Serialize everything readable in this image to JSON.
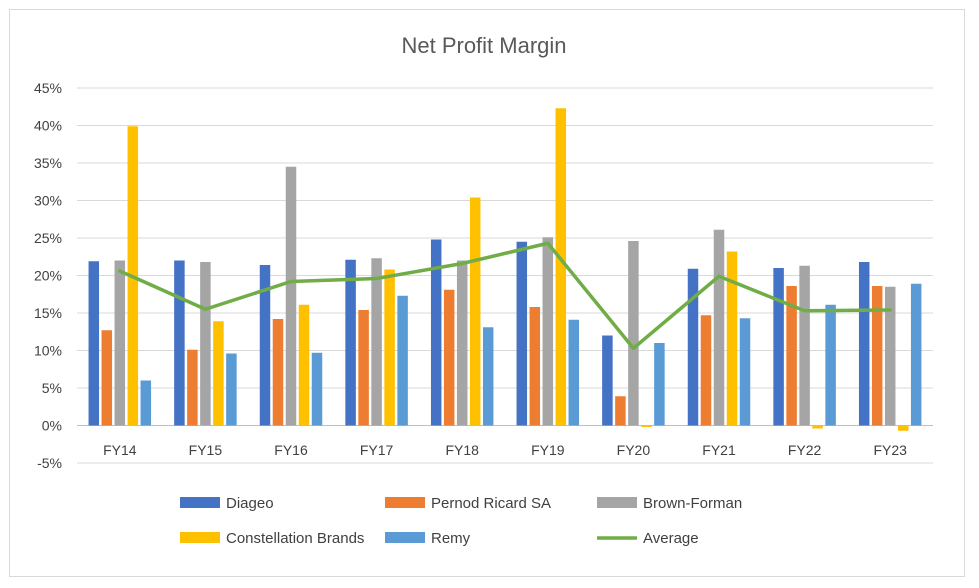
{
  "chart_data": {
    "type": "bar",
    "title": "Net Profit Margin",
    "categories": [
      "FY14",
      "FY15",
      "FY16",
      "FY17",
      "FY18",
      "FY19",
      "FY20",
      "FY21",
      "FY22",
      "FY23"
    ],
    "ylim": [
      -5,
      45
    ],
    "yticks": [
      "45%",
      "40%",
      "35%",
      "30%",
      "25%",
      "20%",
      "15%",
      "10%",
      "5%",
      "0%",
      "-5%"
    ],
    "ytick_values": [
      45,
      40,
      35,
      30,
      25,
      20,
      15,
      10,
      5,
      0,
      -5
    ],
    "grid": true,
    "legend_placement": "bottom",
    "series": [
      {
        "name": "Diageo",
        "type": "bar",
        "color": "#4472C4",
        "values": [
          21.9,
          22.0,
          21.4,
          22.1,
          24.8,
          24.5,
          12.0,
          20.9,
          21.0,
          21.8
        ]
      },
      {
        "name": "Pernod Ricard SA",
        "type": "bar",
        "color": "#ED7D31",
        "values": [
          12.7,
          10.1,
          14.2,
          15.4,
          18.1,
          15.8,
          3.9,
          14.7,
          18.6,
          18.6
        ]
      },
      {
        "name": "Brown-Forman",
        "type": "bar",
        "color": "#A5A5A5",
        "values": [
          22.0,
          21.8,
          34.5,
          22.3,
          22.0,
          25.1,
          24.6,
          26.1,
          21.3,
          18.5
        ]
      },
      {
        "name": "Constellation Brands",
        "type": "bar",
        "color": "#FFC000",
        "values": [
          39.9,
          13.9,
          16.1,
          20.8,
          30.4,
          42.3,
          -0.1,
          23.2,
          -0.4,
          -0.7
        ]
      },
      {
        "name": "Remy",
        "type": "bar",
        "color": "#5B9BD5",
        "values": [
          6.0,
          9.6,
          9.7,
          17.3,
          13.1,
          14.1,
          11.0,
          14.3,
          16.1,
          18.9
        ]
      },
      {
        "name": "Average",
        "type": "line",
        "color": "#70AD47",
        "values": [
          20.6,
          15.5,
          19.2,
          19.6,
          21.6,
          24.3,
          10.3,
          19.9,
          15.3,
          15.4
        ]
      }
    ]
  }
}
